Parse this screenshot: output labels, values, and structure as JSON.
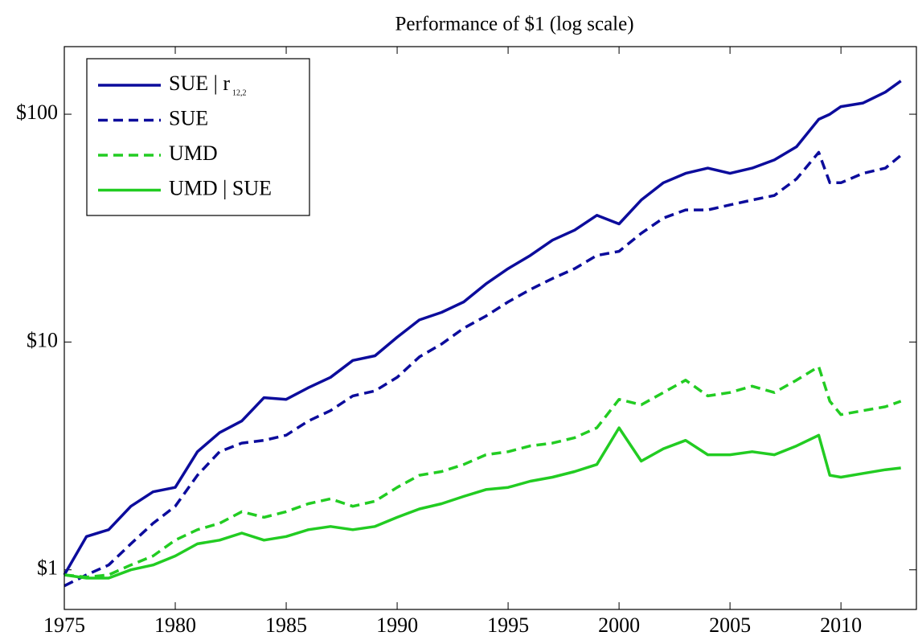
{
  "chart_data": {
    "type": "line",
    "title": "Performance of $1 (log scale)",
    "log_y": true,
    "legend": "top-left",
    "x": [
      1975,
      1976,
      1977,
      1978,
      1979,
      1980,
      1981,
      1982,
      1983,
      1984,
      1985,
      1986,
      1987,
      1988,
      1989,
      1990,
      1991,
      1992,
      1993,
      1994,
      1995,
      1996,
      1997,
      1998,
      1999,
      2000,
      2001,
      2002,
      2003,
      2004,
      2005,
      2006,
      2007,
      2008,
      2009,
      2009.5,
      2010,
      2011,
      2012,
      2012.7
    ],
    "xlim": [
      1975,
      2013.4
    ],
    "xticks": [
      1975,
      1980,
      1985,
      1990,
      1995,
      2000,
      2005,
      2010
    ],
    "ylim": [
      0.67,
      198
    ],
    "yticks": [
      {
        "value": 1,
        "label": "$1"
      },
      {
        "value": 10,
        "label": "$10"
      },
      {
        "value": 100,
        "label": "$100"
      }
    ],
    "series": [
      {
        "name": "SUE | r",
        "name_subscript": "12,2",
        "color": "#0c0c9c",
        "linestyle": "solid",
        "values": [
          0.95,
          1.4,
          1.5,
          1.9,
          2.2,
          2.3,
          3.3,
          4.0,
          4.5,
          5.7,
          5.6,
          6.3,
          7.0,
          8.3,
          8.7,
          10.5,
          12.5,
          13.5,
          15,
          18,
          21,
          24,
          28,
          31,
          36,
          33,
          42,
          50,
          55,
          58,
          55,
          58,
          63,
          72,
          95,
          100,
          108,
          112,
          125,
          140
        ]
      },
      {
        "name": "SUE",
        "color": "#0c0c9c",
        "linestyle": "dashed",
        "values": [
          0.85,
          0.95,
          1.05,
          1.3,
          1.6,
          1.9,
          2.6,
          3.3,
          3.6,
          3.7,
          3.9,
          4.5,
          5.0,
          5.8,
          6.1,
          7.0,
          8.6,
          9.8,
          11.5,
          13,
          15,
          17,
          19,
          21,
          24,
          25,
          30,
          35,
          38,
          38,
          40,
          42,
          44,
          52,
          68,
          50,
          50,
          55,
          58,
          66
        ]
      },
      {
        "name": "UMD",
        "color": "#22cc22",
        "linestyle": "dashed",
        "values": [
          0.95,
          0.93,
          0.95,
          1.05,
          1.15,
          1.35,
          1.5,
          1.6,
          1.8,
          1.7,
          1.8,
          1.95,
          2.05,
          1.9,
          2.0,
          2.3,
          2.6,
          2.7,
          2.9,
          3.2,
          3.3,
          3.5,
          3.6,
          3.8,
          4.2,
          5.6,
          5.3,
          6.0,
          6.8,
          5.8,
          6.0,
          6.4,
          6.0,
          6.8,
          7.8,
          5.5,
          4.8,
          5.0,
          5.2,
          5.5
        ]
      },
      {
        "name": "UMD | SUE",
        "color": "#22cc22",
        "linestyle": "solid",
        "values": [
          0.95,
          0.92,
          0.92,
          1.0,
          1.05,
          1.15,
          1.3,
          1.35,
          1.45,
          1.35,
          1.4,
          1.5,
          1.55,
          1.5,
          1.55,
          1.7,
          1.85,
          1.95,
          2.1,
          2.25,
          2.3,
          2.45,
          2.55,
          2.7,
          2.9,
          4.2,
          3.0,
          3.4,
          3.7,
          3.2,
          3.2,
          3.3,
          3.2,
          3.5,
          3.9,
          2.6,
          2.55,
          2.65,
          2.75,
          2.8
        ]
      }
    ]
  }
}
